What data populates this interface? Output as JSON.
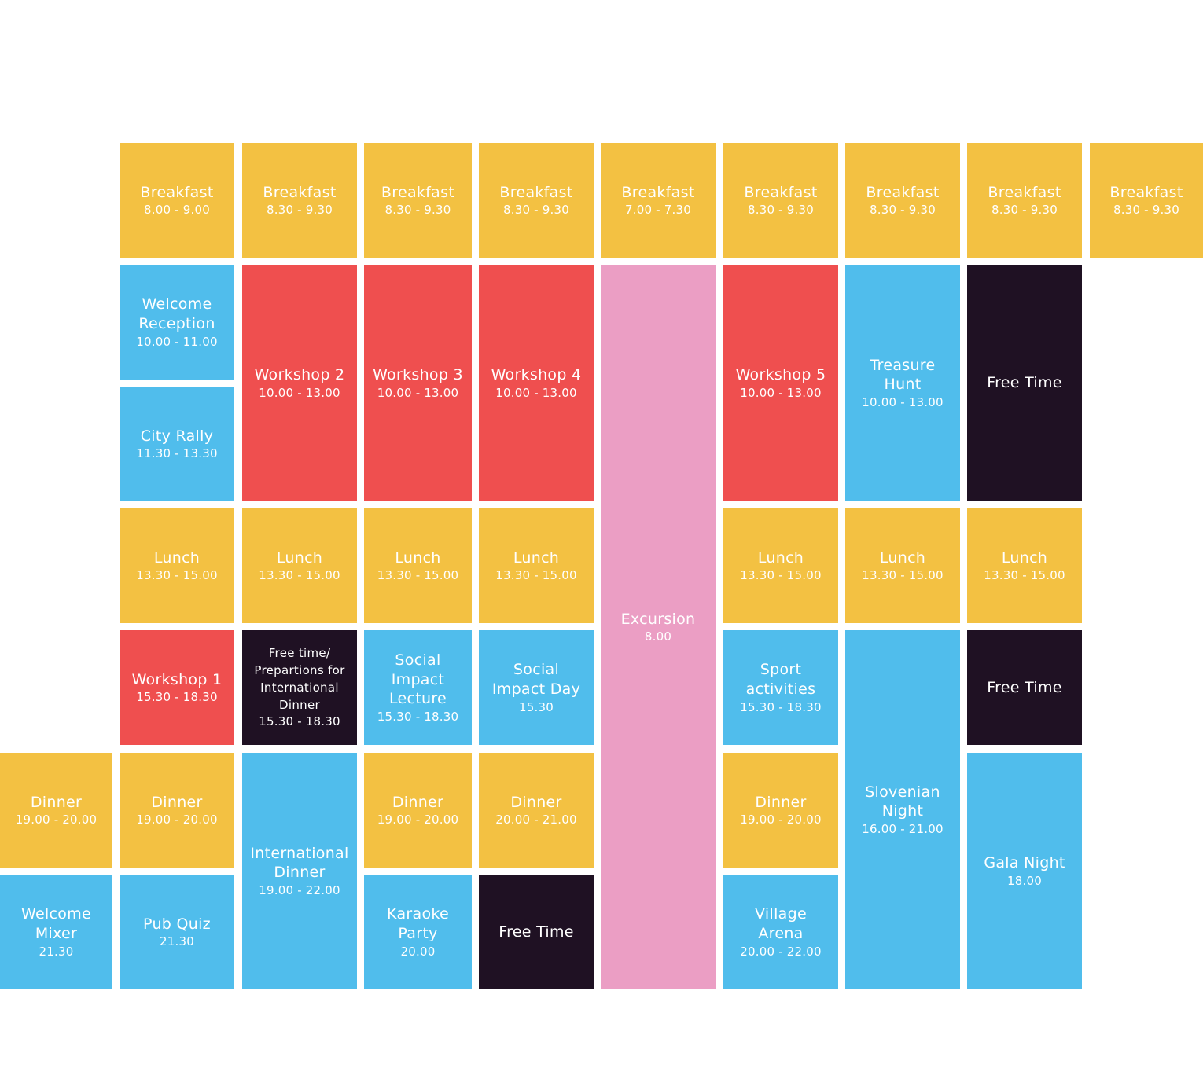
{
  "colors": {
    "meal": "#f3c142",
    "social": "#50bdec",
    "workshop": "#ef4f4f",
    "free": "#1f1123",
    "excursion": "#eb9ec4"
  },
  "schedule": {
    "day0": {
      "dinner": {
        "title": "Dinner",
        "time": "19.00 - 20.00"
      },
      "mixer": {
        "title": "Welcome\nMixer",
        "time": "21.30"
      }
    },
    "day1": {
      "breakfast": {
        "title": "Breakfast",
        "time": "8.00 - 9.00"
      },
      "reception": {
        "title": "Welcome\nReception",
        "time": "10.00 - 11.00"
      },
      "rally": {
        "title": "City Rally",
        "time": "11.30 - 13.30"
      },
      "lunch": {
        "title": "Lunch",
        "time": "13.30 - 15.00"
      },
      "workshop": {
        "title": "Workshop 1",
        "time": "15.30 - 18.30"
      },
      "dinner": {
        "title": "Dinner",
        "time": "19.00 - 20.00"
      },
      "quiz": {
        "title": "Pub Quiz",
        "time": "21.30"
      }
    },
    "day2": {
      "breakfast": {
        "title": "Breakfast",
        "time": "8.30 - 9.30"
      },
      "workshop": {
        "title": "Workshop 2",
        "time": "10.00 - 13.00"
      },
      "lunch": {
        "title": "Lunch",
        "time": "13.30 - 15.00"
      },
      "free": {
        "title": "Free time/\nPrepartions for\nInternational\nDinner",
        "time": "15.30 - 18.30"
      },
      "dinner": {
        "title": "International\nDinner",
        "time": "19.00 - 22.00"
      }
    },
    "day3": {
      "breakfast": {
        "title": "Breakfast",
        "time": "8.30 - 9.30"
      },
      "workshop": {
        "title": "Workshop 3",
        "time": "10.00 - 13.00"
      },
      "lunch": {
        "title": "Lunch",
        "time": "13.30 - 15.00"
      },
      "lecture": {
        "title": "Social\nImpact\nLecture",
        "time": "15.30 - 18.30"
      },
      "dinner": {
        "title": "Dinner",
        "time": "19.00 - 20.00"
      },
      "karaoke": {
        "title": "Karaoke\nParty",
        "time": "20.00"
      }
    },
    "day4": {
      "breakfast": {
        "title": "Breakfast",
        "time": "8.30 - 9.30"
      },
      "workshop": {
        "title": "Workshop 4",
        "time": "10.00 - 13.00"
      },
      "lunch": {
        "title": "Lunch",
        "time": "13.30 - 15.00"
      },
      "impact": {
        "title": "Social\nImpact Day",
        "time": "15.30"
      },
      "dinner": {
        "title": "Dinner",
        "time": "20.00 - 21.00"
      },
      "free": {
        "title": "Free Time"
      }
    },
    "day5": {
      "breakfast": {
        "title": "Breakfast",
        "time": "7.00 - 7.30"
      },
      "excursion": {
        "title": "Excursion",
        "time": "8.00"
      }
    },
    "day6": {
      "breakfast": {
        "title": "Breakfast",
        "time": "8.30 - 9.30"
      },
      "workshop": {
        "title": "Workshop 5",
        "time": "10.00 - 13.00"
      },
      "lunch": {
        "title": "Lunch",
        "time": "13.30 - 15.00"
      },
      "sport": {
        "title": "Sport\nactivities",
        "time": "15.30 - 18.30"
      },
      "dinner": {
        "title": "Dinner",
        "time": "19.00 - 20.00"
      },
      "arena": {
        "title": "Village\nArena",
        "time": "20.00 - 22.00"
      }
    },
    "day7": {
      "breakfast": {
        "title": "Breakfast",
        "time": "8.30 - 9.30"
      },
      "hunt": {
        "title": "Treasure\nHunt",
        "time": "10.00 - 13.00"
      },
      "lunch": {
        "title": "Lunch",
        "time": "13.30 - 15.00"
      },
      "night": {
        "title": "Slovenian\nNight",
        "time": "16.00 - 21.00"
      }
    },
    "day8": {
      "breakfast": {
        "title": "Breakfast",
        "time": "8.30 - 9.30"
      },
      "free1": {
        "title": "Free Time"
      },
      "lunch": {
        "title": "Lunch",
        "time": "13.30 - 15.00"
      },
      "free2": {
        "title": "Free Time"
      },
      "gala": {
        "title": "Gala Night",
        "time": "18.00"
      }
    },
    "day9": {
      "breakfast": {
        "title": "Breakfast",
        "time": "8.30 - 9.30"
      }
    }
  }
}
